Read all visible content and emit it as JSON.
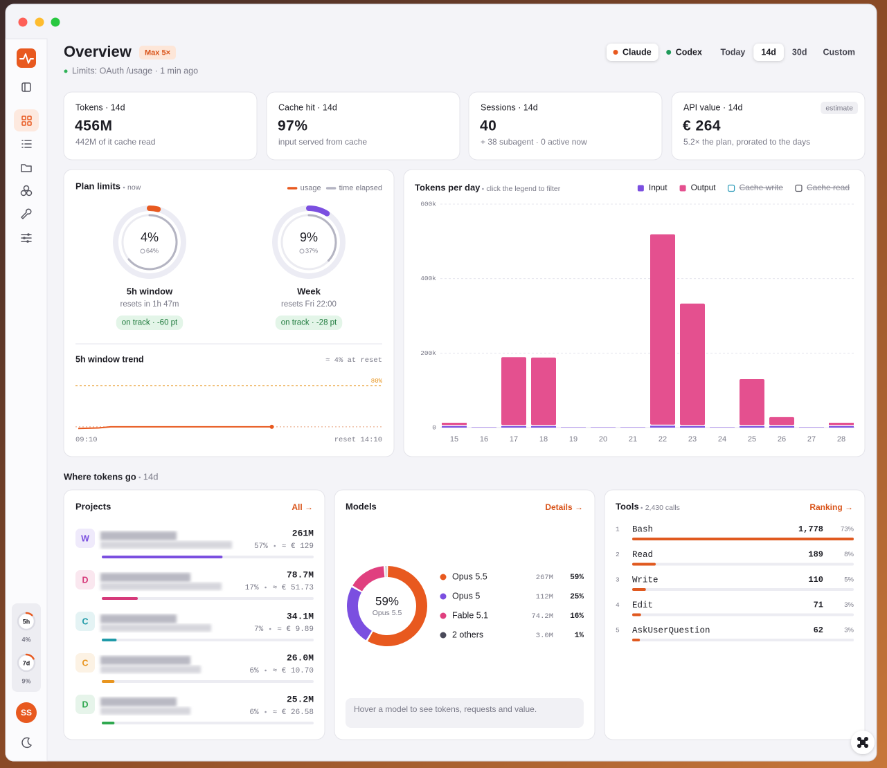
{
  "sidebar": {
    "mini_limits": [
      {
        "label": "5h",
        "value": "4%"
      },
      {
        "label": "7d",
        "value": "9%"
      }
    ],
    "avatar": "SS"
  },
  "header": {
    "title": "Overview",
    "badge": "Max 5×",
    "status": "Limits: OAuth /usage · 1 min ago"
  },
  "providers": [
    {
      "name": "Claude",
      "color": "#e8591f",
      "selected": true
    },
    {
      "name": "Codex",
      "color": "#1f9a5a"
    }
  ],
  "ranges": [
    {
      "name": "Today"
    },
    {
      "name": "14d",
      "selected": true
    },
    {
      "name": "30d"
    },
    {
      "name": "Custom"
    }
  ],
  "kpis": [
    {
      "label": "Tokens · 14d",
      "value": "456M",
      "note": "442M of it cache read"
    },
    {
      "label": "Cache hit · 14d",
      "value": "97%",
      "note": "input served from cache"
    },
    {
      "label": "Sessions · 14d",
      "value": "40",
      "note": "+ 38 subagent · 0 active now"
    },
    {
      "label": "API value · 14d",
      "value": "€ 264",
      "note": "5.2× the plan, prorated to the days",
      "badge": "estimate"
    }
  ],
  "plan_limits": {
    "title": "Plan limits",
    "subtitle": "now",
    "legend": [
      {
        "name": "usage",
        "color": "#e8591f"
      },
      {
        "name": "time elapsed",
        "color": "#b4b4c2"
      }
    ],
    "gauges": [
      {
        "name": "5h window",
        "usage": {
          "value": 4,
          "label": "4%"
        },
        "elapsed": {
          "value": 64,
          "label": "64%"
        },
        "reset": "resets in 1h 47m",
        "status": "on track · -60 pt",
        "color": "#e8591f"
      },
      {
        "name": "Week",
        "usage": {
          "value": 9,
          "label": "9%"
        },
        "elapsed": {
          "value": 37,
          "label": "37%"
        },
        "reset": "resets Fri 22:00",
        "status": "on track · -28 pt",
        "color": "#7b4fe0"
      }
    ]
  },
  "chart_data": [
    {
      "type": "bar",
      "title": "Tokens per day",
      "subtitle": "click the legend to filter",
      "categories": [
        "15",
        "16",
        "17",
        "18",
        "19",
        "20",
        "21",
        "22",
        "23",
        "24",
        "25",
        "26",
        "27",
        "28"
      ],
      "series": [
        {
          "name": "Input",
          "color": "#7b4fe0",
          "values": [
            4000,
            1000,
            4000,
            4000,
            1000,
            1000,
            1000,
            5000,
            4000,
            1000,
            4000,
            4000,
            1000,
            4000
          ]
        },
        {
          "name": "Output",
          "color": "#e4508f",
          "values": [
            9000,
            0,
            185000,
            184000,
            0,
            0,
            0,
            514000,
            329000,
            0,
            126000,
            24000,
            0,
            9000
          ]
        }
      ],
      "hidden_series": [
        {
          "name": "Cache write",
          "color": "#2a9ab8"
        },
        {
          "name": "Cache read",
          "color": "#55555f"
        }
      ],
      "stacked": true,
      "ylim": [
        0,
        600000
      ],
      "yticks": [
        0,
        {
          "value": 200000,
          "label": "200k"
        },
        {
          "value": 400000,
          "label": "400k"
        },
        {
          "value": 600000,
          "label": "600k"
        }
      ],
      "grid": true
    },
    {
      "type": "line",
      "title": "5h window trend",
      "annotation": "≈ 4% at reset",
      "x": [
        0,
        10,
        20,
        32,
        100,
        191
      ],
      "values": [
        1,
        1.5,
        2,
        4,
        4,
        4
      ],
      "color": "#e8591f",
      "xlim": [
        0,
        300
      ],
      "xticks": [
        {
          "value": 0,
          "label": "09:10"
        },
        {
          "value": 300,
          "label": "reset 14:10"
        }
      ],
      "ylim": [
        0,
        100
      ],
      "threshold": {
        "value": 80,
        "label": "80%"
      }
    }
  ],
  "section": {
    "title": "Where tokens go",
    "subtitle": "14d"
  },
  "projects": {
    "title": "Projects",
    "link": "All →",
    "items": [
      {
        "initial": "W",
        "color": "#7b4fe0",
        "tokens": "261M",
        "share": {
          "value": 57,
          "label": "57%"
        },
        "cost": "≈ € 129"
      },
      {
        "initial": "D",
        "color": "#d63a7a",
        "tokens": "78.7M",
        "share": {
          "value": 17,
          "label": "17%"
        },
        "cost": "≈ € 51.73"
      },
      {
        "initial": "C",
        "color": "#1f9aa8",
        "tokens": "34.1M",
        "share": {
          "value": 7,
          "label": "7%"
        },
        "cost": "≈ € 9.89"
      },
      {
        "initial": "C",
        "color": "#e8951f",
        "tokens": "26.0M",
        "share": {
          "value": 6,
          "label": "6%"
        },
        "cost": "≈ € 10.70"
      },
      {
        "initial": "D",
        "color": "#2fa84f",
        "tokens": "25.2M",
        "share": {
          "value": 6,
          "label": "6%"
        },
        "cost": "≈ € 26.58"
      }
    ]
  },
  "models": {
    "title": "Models",
    "link": "Details →",
    "hint": "Hover a model to see tokens, requests and value.",
    "items": [
      {
        "name": "Opus 5.5",
        "color": "#e8591f",
        "tokens": "267M",
        "share": {
          "value": 59,
          "label": "59%"
        }
      },
      {
        "name": "Opus 5",
        "color": "#7b4fe0",
        "tokens": "112M",
        "share": {
          "value": 25,
          "label": "25%"
        }
      },
      {
        "name": "Fable 5.1",
        "color": "#e0407f",
        "tokens": "74.2M",
        "share": {
          "value": 16,
          "label": "16%"
        }
      },
      {
        "name": "2 others",
        "color": "#4a4a5a",
        "tokens": "3.0M",
        "share": {
          "value": 1,
          "label": "1%"
        }
      }
    ]
  },
  "tools": {
    "title": "Tools",
    "subtitle": "2,430 calls",
    "link": "Ranking →",
    "color": "#e0591f",
    "items": [
      {
        "rank": 1,
        "name": "Bash",
        "count": {
          "value": 1778,
          "label": "1,778"
        },
        "share": {
          "value": 73,
          "label": "73%"
        }
      },
      {
        "rank": 2,
        "name": "Read",
        "count": {
          "value": 189,
          "label": "189"
        },
        "share": {
          "value": 8,
          "label": "8%"
        }
      },
      {
        "rank": 3,
        "name": "Write",
        "count": {
          "value": 110,
          "label": "110"
        },
        "share": {
          "value": 5,
          "label": "5%"
        }
      },
      {
        "rank": 4,
        "name": "Edit",
        "count": {
          "value": 71,
          "label": "71"
        },
        "share": {
          "value": 3,
          "label": "3%"
        }
      },
      {
        "rank": 5,
        "name": "AskUserQuestion",
        "count": {
          "value": 62,
          "label": "62"
        },
        "share": {
          "value": 3,
          "label": "3%"
        }
      }
    ]
  }
}
